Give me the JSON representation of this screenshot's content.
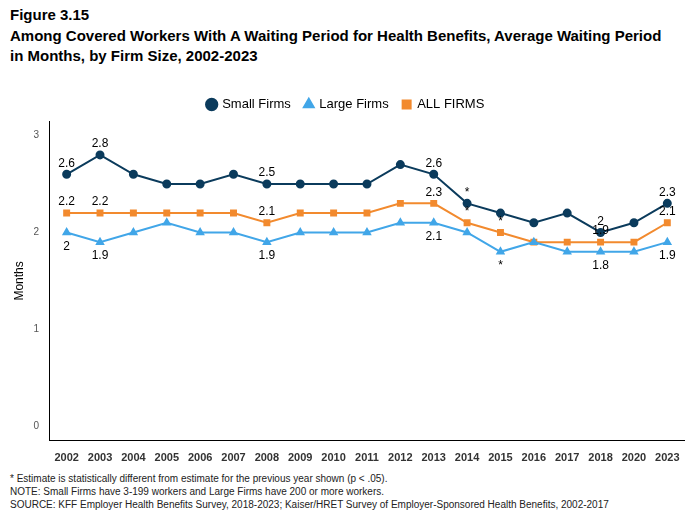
{
  "chart_data": {
    "type": "line",
    "title": "Figure 3.15",
    "subtitle": "Among Covered Workers With A Waiting Period for Health Benefits, Average Waiting Period in Months, by Firm Size, 2002-2023",
    "y_label": "Months",
    "categories": [
      "2002",
      "2003",
      "2004",
      "2005",
      "2006",
      "2007",
      "2008",
      "2009",
      "2010",
      "2011",
      "2012",
      "2013",
      "2014",
      "2015",
      "2016",
      "2017",
      "2018",
      "2020",
      "2023"
    ],
    "series": [
      {
        "name": "Small Firms",
        "color": "#0b3b5c",
        "marker": "circle",
        "values": [
          2.6,
          2.8,
          2.6,
          2.5,
          2.5,
          2.6,
          2.5,
          2.5,
          2.5,
          2.5,
          2.7,
          2.6,
          2.3,
          2.2,
          2.1,
          2.2,
          2.0,
          2.1,
          2.3
        ],
        "value_labels": [
          "2.6",
          "2.8",
          null,
          null,
          null,
          null,
          "2.5",
          null,
          null,
          null,
          null,
          "2.6",
          null,
          null,
          null,
          null,
          "2",
          null,
          "2.3"
        ]
      },
      {
        "name": "Large Firms",
        "color": "#41a6e8",
        "marker": "triangle",
        "values": [
          2.0,
          1.9,
          2.0,
          2.1,
          2.0,
          2.0,
          1.9,
          2.0,
          2.0,
          2.0,
          2.1,
          2.1,
          2.0,
          1.8,
          1.9,
          1.8,
          1.8,
          1.8,
          1.9
        ],
        "value_labels": [
          "2",
          "1.9",
          null,
          null,
          null,
          null,
          "1.9",
          null,
          null,
          null,
          null,
          "2.1",
          null,
          null,
          null,
          null,
          "1.8",
          null,
          "1.9"
        ]
      },
      {
        "name": "ALL FIRMS",
        "color": "#f28a2e",
        "marker": "square",
        "values": [
          2.2,
          2.2,
          2.2,
          2.2,
          2.2,
          2.2,
          2.1,
          2.2,
          2.2,
          2.2,
          2.3,
          2.3,
          2.1,
          2.0,
          1.9,
          1.9,
          1.9,
          1.9,
          2.1
        ],
        "value_labels": [
          "2.2",
          "2.2",
          null,
          null,
          null,
          null,
          "2.1",
          null,
          null,
          null,
          null,
          "2.3",
          null,
          null,
          null,
          null,
          "1.9",
          null,
          "2.1"
        ]
      }
    ],
    "annotations": [
      {
        "series": "Small Firms",
        "category": "2014",
        "text": "*"
      },
      {
        "series": "ALL FIRMS",
        "category": "2014",
        "text": "*"
      },
      {
        "series": "ALL FIRMS",
        "category": "2015",
        "text": "*"
      },
      {
        "series": "Large Firms",
        "category": "2015",
        "text": "*"
      }
    ],
    "ylim": [
      -0.15,
      3.15
    ],
    "yticks": [
      0,
      1,
      2,
      3
    ],
    "grid": false,
    "legend": "top",
    "data_labels": true,
    "footnotes": [
      "* Estimate is statistically different from estimate for the previous year shown (p < .05).",
      "NOTE: Small Firms have 3-199 workers and Large Firms have 200 or more workers.",
      "SOURCE: KFF Employer Health Benefits Survey, 2018-2023; Kaiser/HRET Survey of Employer-Sponsored Health Benefits, 2002-2017"
    ]
  }
}
